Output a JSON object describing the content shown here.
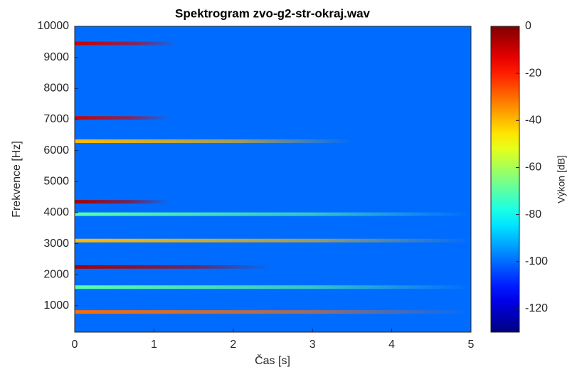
{
  "chart_data": {
    "type": "spectrogram",
    "title": "Spektrogram zvo-g2-str-okraj.wav",
    "x_label": "Čas [s]",
    "y_label": "Frekvence [Hz]",
    "colorbar_label": "Výkon [dB]",
    "xlim": [
      0,
      5
    ],
    "xticks": [
      0,
      1,
      2,
      3,
      4,
      5
    ],
    "ylim": [
      150,
      10000
    ],
    "yticks": [
      1000,
      2000,
      3000,
      4000,
      5000,
      6000,
      7000,
      8000,
      9000,
      10000
    ],
    "clim": [
      -130,
      0
    ],
    "cticks": [
      0,
      -20,
      -40,
      -60,
      -80,
      -100,
      -120
    ],
    "colormap": "jet",
    "noise_floor": -100,
    "peaks": {
      "frequency": [
        800,
        1600,
        2250,
        3100,
        3950,
        4350,
        6300,
        7050,
        9450
      ],
      "power": [
        -30,
        -70,
        -5,
        -40,
        -70,
        -5,
        -40,
        -10,
        -10
      ],
      "duration": [
        5,
        5,
        2.5,
        5,
        5,
        1.2,
        3.5,
        1.2,
        1.3
      ]
    }
  }
}
